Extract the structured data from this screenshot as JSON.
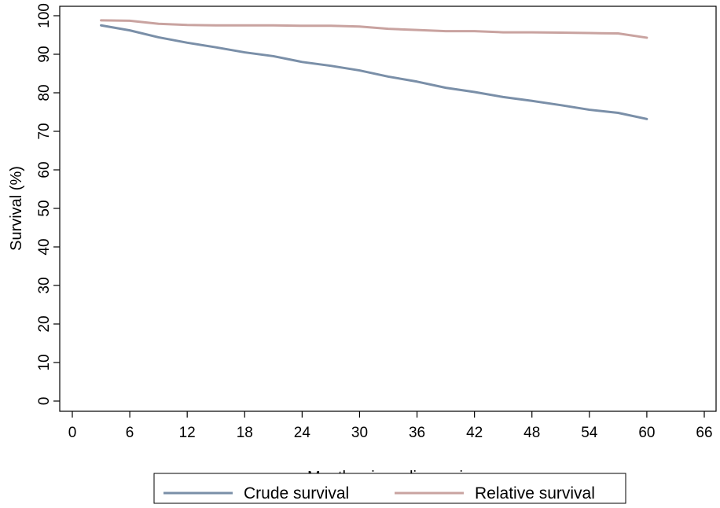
{
  "chart_data": {
    "type": "line",
    "title": "",
    "xlabel": "Months since diagnosis",
    "ylabel": "Survival (%)",
    "xlim": [
      0,
      66
    ],
    "ylim": [
      0,
      100
    ],
    "x_ticks": [
      0,
      6,
      12,
      18,
      24,
      30,
      36,
      42,
      48,
      54,
      60,
      66
    ],
    "y_ticks": [
      0,
      10,
      20,
      30,
      40,
      50,
      60,
      70,
      80,
      90,
      100
    ],
    "grid": false,
    "legend_position": "bottom",
    "series": [
      {
        "name": "Crude survival",
        "color": "#7a8fa8",
        "x": [
          3,
          6,
          9,
          12,
          15,
          18,
          21,
          24,
          27,
          30,
          33,
          36,
          39,
          42,
          45,
          48,
          51,
          54,
          57,
          60
        ],
        "y": [
          97.5,
          96.2,
          94.4,
          93.0,
          91.8,
          90.5,
          89.5,
          88.0,
          87.0,
          85.8,
          84.2,
          82.9,
          81.3,
          80.2,
          78.9,
          77.9,
          76.8,
          75.6,
          74.8,
          73.2
        ]
      },
      {
        "name": "Relative survival",
        "color": "#c9a3a0",
        "x": [
          3,
          6,
          9,
          12,
          15,
          18,
          21,
          24,
          27,
          30,
          33,
          36,
          39,
          42,
          45,
          48,
          51,
          54,
          57,
          60
        ],
        "y": [
          98.8,
          98.7,
          97.9,
          97.6,
          97.5,
          97.5,
          97.5,
          97.4,
          97.4,
          97.2,
          96.6,
          96.3,
          96.0,
          96.0,
          95.7,
          95.7,
          95.6,
          95.5,
          95.4,
          94.3
        ]
      }
    ]
  }
}
